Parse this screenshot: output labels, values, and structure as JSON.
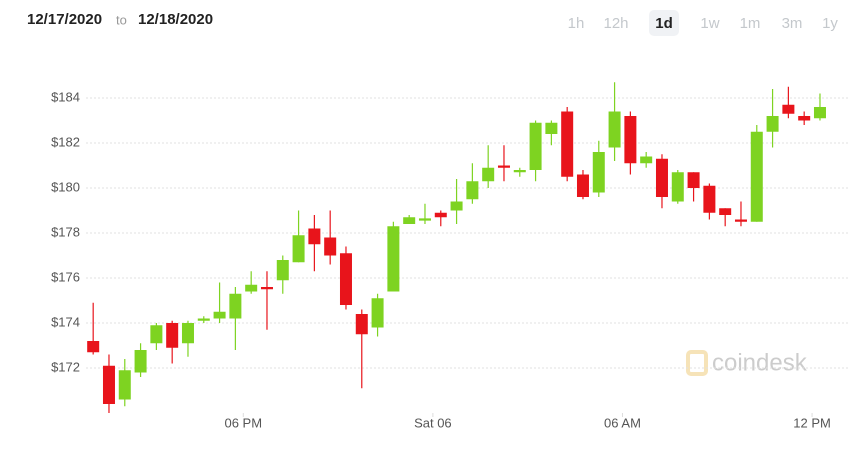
{
  "header": {
    "from": "12/17/2020",
    "to": "12/18/2020",
    "joiner": "to",
    "ranges": [
      "1h",
      "12h",
      "1d",
      "1w",
      "1m",
      "3m",
      "1y"
    ],
    "selected_range": "1d"
  },
  "watermark": "coindesk",
  "chart_data": {
    "type": "candlestick",
    "x": [
      13.25,
      13.75,
      14.25,
      14.75,
      15.25,
      15.75,
      16.25,
      16.75,
      17.25,
      17.75,
      18.25,
      18.75,
      19.25,
      19.75,
      20.25,
      20.75,
      21.25,
      21.75,
      22.25,
      22.75,
      23.25,
      23.75,
      24.25,
      24.75,
      25.25,
      25.75,
      26.25,
      26.75,
      27.25,
      27.75,
      28.25,
      28.75,
      29.25,
      29.75,
      30.25,
      30.75,
      31.25,
      31.75,
      32.25,
      32.75,
      33.25,
      33.75,
      34.25,
      34.75,
      35.25,
      35.75,
      36.25
    ],
    "open": [
      173.2,
      172.1,
      170.6,
      171.8,
      173.1,
      174.0,
      173.1,
      174.1,
      174.2,
      174.2,
      175.4,
      175.6,
      175.9,
      176.7,
      178.2,
      177.8,
      177.1,
      174.4,
      173.8,
      175.4,
      178.4,
      178.55,
      178.9,
      179.0,
      179.5,
      180.3,
      181.0,
      180.7,
      180.8,
      182.4,
      183.4,
      180.6,
      179.8,
      181.8,
      183.2,
      181.1,
      181.3,
      179.4,
      180.7,
      180.1,
      179.1,
      178.6,
      178.5,
      182.5,
      183.7,
      183.2,
      183.1
    ],
    "high": [
      174.9,
      172.6,
      172.4,
      173.1,
      174.0,
      174.1,
      174.1,
      174.3,
      175.8,
      175.6,
      176.3,
      176.3,
      177.0,
      179.0,
      178.8,
      179.0,
      177.4,
      174.6,
      175.3,
      178.5,
      178.8,
      179.3,
      179.0,
      180.4,
      181.1,
      181.9,
      181.9,
      180.9,
      183.0,
      183.0,
      183.6,
      180.8,
      182.1,
      184.7,
      183.4,
      181.6,
      181.5,
      180.8,
      180.7,
      180.2,
      179.1,
      179.4,
      182.8,
      184.4,
      184.5,
      183.4,
      184.2
    ],
    "low": [
      172.6,
      170.0,
      170.3,
      171.6,
      172.8,
      172.2,
      172.5,
      174.0,
      174.0,
      172.8,
      175.3,
      173.7,
      175.3,
      176.7,
      176.3,
      176.6,
      174.6,
      171.1,
      173.4,
      175.4,
      178.4,
      178.4,
      178.3,
      178.4,
      179.3,
      180.0,
      180.3,
      180.5,
      180.3,
      181.9,
      180.3,
      179.5,
      179.6,
      181.2,
      180.6,
      180.9,
      179.1,
      179.3,
      179.4,
      178.6,
      178.3,
      178.3,
      178.5,
      181.8,
      183.1,
      182.8,
      183.0
    ],
    "close": [
      172.7,
      170.4,
      171.9,
      172.8,
      173.9,
      172.9,
      174.0,
      174.2,
      174.5,
      175.3,
      175.7,
      175.5,
      176.8,
      177.9,
      177.5,
      177.0,
      174.8,
      173.5,
      175.1,
      178.3,
      178.7,
      178.65,
      178.7,
      179.4,
      180.3,
      180.9,
      180.9,
      180.8,
      182.9,
      182.9,
      180.5,
      179.6,
      181.6,
      183.4,
      181.1,
      181.4,
      179.6,
      180.7,
      180.0,
      178.9,
      178.8,
      178.5,
      182.5,
      183.2,
      183.3,
      183.0,
      183.6
    ],
    "up_color": "#7ed321",
    "down_color": "#e8141b",
    "xlim": [
      12.2,
      37.2
    ],
    "xticks": [
      {
        "value": 18,
        "label": "06 PM"
      },
      {
        "value": 24,
        "label": "Sat 06"
      },
      {
        "value": 30,
        "label": "06 AM"
      },
      {
        "value": 36,
        "label": "12 PM"
      }
    ],
    "ylim": [
      170,
      185.6
    ],
    "yticks": [
      {
        "value": 172,
        "label": "$172"
      },
      {
        "value": 174,
        "label": "$174"
      },
      {
        "value": 176,
        "label": "$176"
      },
      {
        "value": 178,
        "label": "$178"
      },
      {
        "value": 180,
        "label": "$180"
      },
      {
        "value": 182,
        "label": "$182"
      },
      {
        "value": 184,
        "label": "$184"
      }
    ],
    "grid": true
  }
}
